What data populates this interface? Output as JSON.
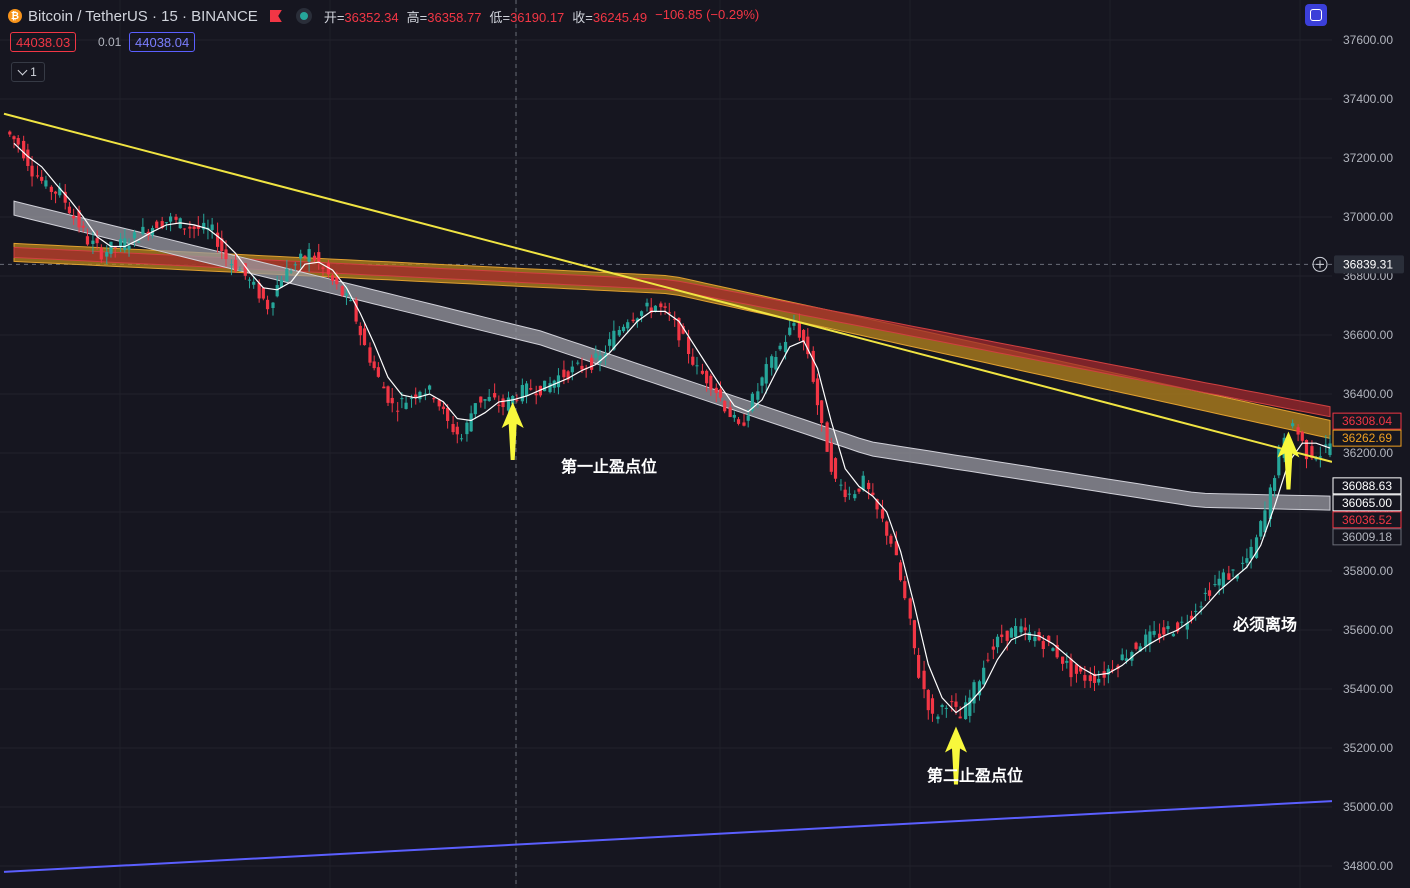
{
  "header": {
    "symbol": "Bitcoin / TetherUS · 15 · BINANCE",
    "open_label": "开=",
    "open_value": "36352.34",
    "high_label": "高=",
    "high_value": "36358.77",
    "low_label": "低=",
    "low_value": "36190.17",
    "close_label": "收=",
    "close_value": "36245.49",
    "change": "−106.85 (−0.29%)"
  },
  "trade": {
    "sell_price": "44038.03",
    "spread": "0.01",
    "buy_price": "44038.04"
  },
  "indicator_toggle": {
    "count": "1"
  },
  "icons": {
    "coin": "bitcoin-icon",
    "flag": "flag-icon",
    "status": "market-status-icon",
    "top": "screenshot-icon",
    "crosshair": "plus-circle-icon",
    "collapse": "chevron-down-icon"
  },
  "colors": {
    "background": "#161620",
    "up": "#26a69a",
    "down": "#f23645",
    "trendline": "#f0e442",
    "support_line": "#5b5fff",
    "ma_white": "#ffffff",
    "ribbon_orange": "#b8861c",
    "ribbon_gray": "#9a9aa2",
    "ribbon_red": "#a0282c",
    "arrow": "#f8f83c"
  },
  "annotations": {
    "first": "第一止盈点位",
    "second": "第二止盈点位",
    "exit": "必须离场"
  },
  "crosshair_price": "36839.31",
  "chart_data": {
    "type": "candlestick",
    "timeframe": "15",
    "y_axis": {
      "min": 34750,
      "max": 37700,
      "ticks": [
        37600,
        37400,
        37200,
        37000,
        36800,
        36600,
        36400,
        36200,
        36000,
        35800,
        35600,
        35400,
        35200,
        35000,
        34800
      ],
      "tick_labels": [
        "37600.00",
        "37400.00",
        "37200.00",
        "37000.00",
        "36800.00",
        "36600.00",
        "36400.00",
        "36200.00",
        "36000.00",
        "35800.00",
        "35600.00",
        "35400.00",
        "35200.00",
        "35000.00",
        "34800.00"
      ]
    },
    "candles_close_path": [
      37250,
      37160,
      37100,
      37080,
      37000,
      36920,
      36880,
      36900,
      36920,
      36950,
      36980,
      36990,
      36970,
      36960,
      36950,
      36860,
      36820,
      36760,
      36700,
      36800,
      36840,
      36880,
      36820,
      36760,
      36700,
      36560,
      36450,
      36360,
      36380,
      36420,
      36400,
      36300,
      36250,
      36380,
      36380,
      36360,
      36400,
      36420,
      36420,
      36460,
      36480,
      36500,
      36520,
      36600,
      36660,
      36680,
      36700,
      36660,
      36580,
      36480,
      36440,
      36360,
      36280,
      36380,
      36480,
      36560,
      36640,
      36540,
      36280,
      36100,
      36060,
      36100,
      36000,
      35900,
      35700,
      35450,
      35300,
      35360,
      35300,
      35400,
      35520,
      35580,
      35600,
      35580,
      35560,
      35520,
      35460,
      35440,
      35440,
      35480,
      35520,
      35560,
      35580,
      35600,
      35620,
      35680,
      35740,
      35780,
      35800,
      35860,
      36000,
      36200,
      36300,
      36200,
      36200,
      36250
    ],
    "price_labels": [
      {
        "label": "36308.04",
        "role": "ribbon-red",
        "value": 36308.04
      },
      {
        "label": "36262.69",
        "role": "ribbon-orange",
        "value": 36262.69
      },
      {
        "label": "36088.63",
        "role": "ma-white",
        "value": 36088.63
      },
      {
        "label": "36065.00",
        "role": "ma-white-2",
        "value": 36065.0
      },
      {
        "label": "36036.52",
        "role": "ma-red",
        "value": 36036.52
      },
      {
        "label": "36009.18",
        "role": "ribbon-gray",
        "value": 36009.18
      }
    ],
    "trendline": {
      "points": [
        [
          0,
          37350
        ],
        [
          1,
          36170
        ]
      ]
    },
    "support_line": {
      "points": [
        [
          0,
          34780
        ],
        [
          1,
          35020
        ]
      ]
    },
    "annotation_points": [
      {
        "text_key": "first",
        "index": 36
      },
      {
        "text_key": "second",
        "index": 68
      },
      {
        "text_key": "exit",
        "index": 92
      }
    ]
  }
}
